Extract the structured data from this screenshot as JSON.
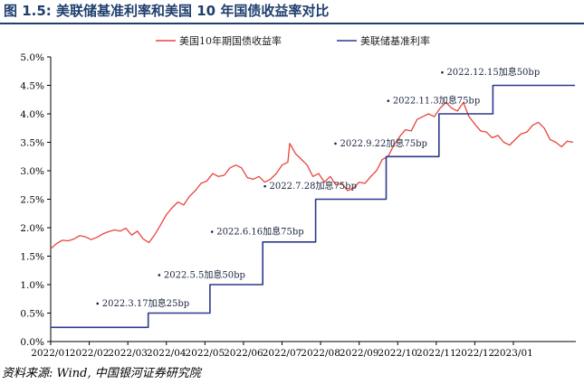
{
  "figure": {
    "title": "图 1.5:  美联储基准利率和美国 10 年国债收益率对比",
    "source": "资料来源: Wind, 中国银河证券研究院"
  },
  "colors": {
    "treasury": "#e8453c",
    "fed": "#2b3a8c",
    "title": "#1f3f6e"
  },
  "chart_data": {
    "type": "line",
    "title": "",
    "xlabel": "",
    "ylabel": "",
    "ylim": [
      0,
      5
    ],
    "y_ticks": [
      "0.0%",
      "0.5%",
      "1.0%",
      "1.5%",
      "2.0%",
      "2.5%",
      "3.0%",
      "3.5%",
      "4.0%",
      "4.5%",
      "5.0%"
    ],
    "x_ticks": [
      "2022/01",
      "2022/02",
      "2022/03",
      "2022/04",
      "2022/05",
      "2022/06",
      "2022/07",
      "2022/08",
      "2022/09",
      "2022/10",
      "2022/11",
      "2022/12",
      "2023/01"
    ],
    "grid": false,
    "legend_position": "top-center",
    "series": [
      {
        "name": "美国10年期国债收益率",
        "color_key": "treasury",
        "kind": "line",
        "points": [
          [
            0.0,
            1.63
          ],
          [
            0.15,
            1.72
          ],
          [
            0.3,
            1.78
          ],
          [
            0.45,
            1.77
          ],
          [
            0.6,
            1.8
          ],
          [
            0.75,
            1.86
          ],
          [
            0.9,
            1.84
          ],
          [
            1.05,
            1.79
          ],
          [
            1.2,
            1.83
          ],
          [
            1.35,
            1.89
          ],
          [
            1.5,
            1.93
          ],
          [
            1.65,
            1.96
          ],
          [
            1.8,
            1.94
          ],
          [
            1.95,
            1.99
          ],
          [
            2.1,
            1.87
          ],
          [
            2.25,
            1.94
          ],
          [
            2.4,
            1.8
          ],
          [
            2.55,
            1.74
          ],
          [
            2.7,
            1.88
          ],
          [
            2.85,
            2.05
          ],
          [
            3.0,
            2.23
          ],
          [
            3.15,
            2.35
          ],
          [
            3.3,
            2.45
          ],
          [
            3.45,
            2.4
          ],
          [
            3.6,
            2.55
          ],
          [
            3.75,
            2.65
          ],
          [
            3.9,
            2.78
          ],
          [
            4.05,
            2.82
          ],
          [
            4.2,
            2.95
          ],
          [
            4.35,
            2.9
          ],
          [
            4.5,
            2.92
          ],
          [
            4.65,
            3.05
          ],
          [
            4.8,
            3.1
          ],
          [
            4.95,
            3.05
          ],
          [
            5.1,
            2.88
          ],
          [
            5.25,
            2.85
          ],
          [
            5.4,
            2.9
          ],
          [
            5.55,
            2.8
          ],
          [
            5.7,
            2.85
          ],
          [
            5.85,
            2.95
          ],
          [
            6.0,
            3.1
          ],
          [
            6.15,
            3.15
          ],
          [
            6.2,
            3.48
          ],
          [
            6.35,
            3.3
          ],
          [
            6.5,
            3.2
          ],
          [
            6.65,
            3.1
          ],
          [
            6.8,
            2.9
          ],
          [
            6.95,
            2.95
          ],
          [
            7.1,
            2.8
          ],
          [
            7.25,
            2.9
          ],
          [
            7.4,
            2.75
          ],
          [
            7.55,
            2.78
          ],
          [
            7.7,
            2.65
          ],
          [
            7.85,
            2.7
          ],
          [
            8.0,
            2.8
          ],
          [
            8.15,
            2.78
          ],
          [
            8.3,
            2.9
          ],
          [
            8.45,
            3.0
          ],
          [
            8.6,
            3.2
          ],
          [
            8.75,
            3.25
          ],
          [
            8.9,
            3.45
          ],
          [
            9.05,
            3.6
          ],
          [
            9.2,
            3.72
          ],
          [
            9.35,
            3.7
          ],
          [
            9.5,
            3.9
          ],
          [
            9.65,
            3.95
          ],
          [
            9.8,
            4.0
          ],
          [
            9.95,
            3.95
          ],
          [
            10.1,
            4.1
          ],
          [
            10.25,
            4.2
          ],
          [
            10.4,
            4.1
          ],
          [
            10.55,
            4.05
          ],
          [
            10.7,
            4.2
          ],
          [
            10.85,
            3.95
          ],
          [
            11.0,
            3.82
          ],
          [
            11.15,
            3.7
          ],
          [
            11.3,
            3.68
          ],
          [
            11.45,
            3.58
          ],
          [
            11.6,
            3.62
          ],
          [
            11.75,
            3.5
          ],
          [
            11.9,
            3.45
          ],
          [
            12.05,
            3.55
          ],
          [
            12.2,
            3.65
          ],
          [
            12.35,
            3.68
          ],
          [
            12.5,
            3.8
          ],
          [
            12.65,
            3.85
          ],
          [
            12.8,
            3.75
          ],
          [
            12.95,
            3.55
          ],
          [
            13.1,
            3.5
          ],
          [
            13.25,
            3.42
          ],
          [
            13.4,
            3.52
          ],
          [
            13.55,
            3.5
          ]
        ]
      },
      {
        "name": "美联储基准利率",
        "color_key": "fed",
        "kind": "step",
        "points": [
          [
            0.0,
            0.25
          ],
          [
            2.53,
            0.25
          ],
          [
            2.53,
            0.5
          ],
          [
            4.13,
            0.5
          ],
          [
            4.13,
            1.0
          ],
          [
            5.5,
            1.0
          ],
          [
            5.5,
            1.75
          ],
          [
            6.87,
            1.75
          ],
          [
            6.87,
            2.5
          ],
          [
            8.7,
            2.5
          ],
          [
            8.7,
            3.25
          ],
          [
            10.07,
            3.25
          ],
          [
            10.07,
            4.0
          ],
          [
            11.47,
            4.0
          ],
          [
            11.47,
            4.5
          ],
          [
            13.6,
            4.5
          ]
        ]
      }
    ],
    "annotations": [
      {
        "text": "2022.3.17加息25bp",
        "x": 2.53,
        "y": 0.62
      },
      {
        "text": "2022.5.5加息50bp",
        "x": 4.13,
        "y": 1.12
      },
      {
        "text": "2022.6.16加息75bp",
        "x": 5.5,
        "y": 1.88
      },
      {
        "text": "2022.7.28加息75bp",
        "x": 6.87,
        "y": 2.68
      },
      {
        "text": "2022.9.22加息75bp",
        "x": 8.7,
        "y": 3.43
      },
      {
        "text": "2022.11.3加息75bp",
        "x": 10.07,
        "y": 4.18
      },
      {
        "text": "2022.12.15加息50bp",
        "x": 11.47,
        "y": 4.68
      }
    ]
  }
}
